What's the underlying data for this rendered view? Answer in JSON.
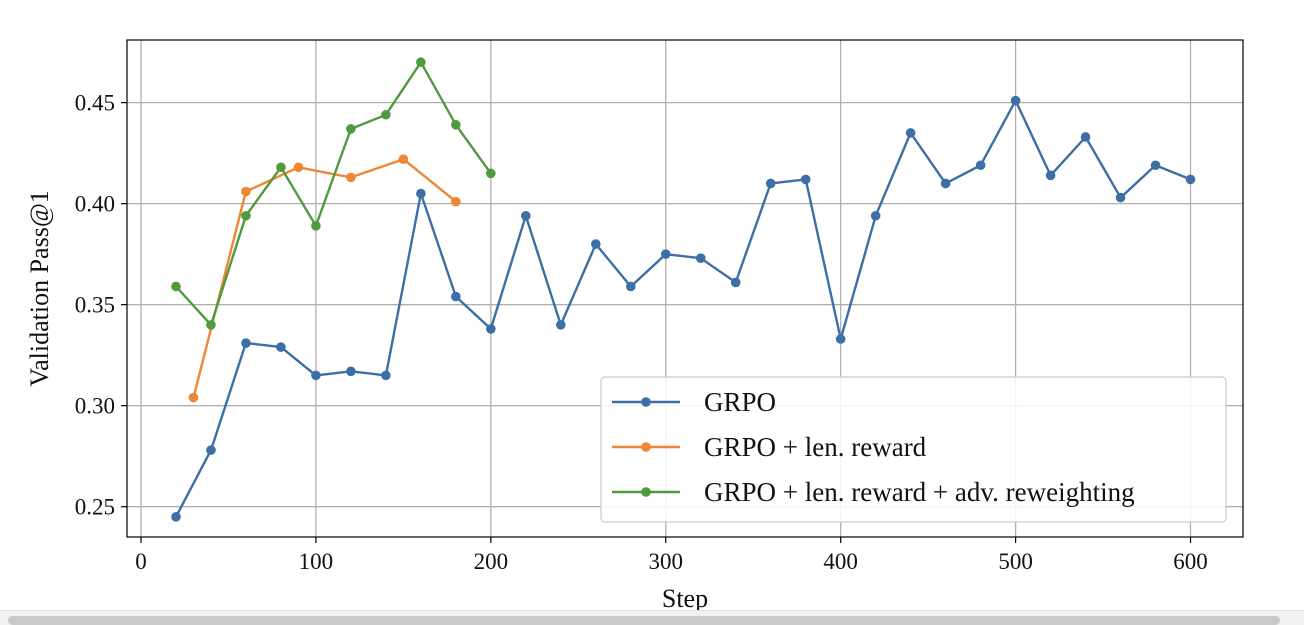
{
  "chart_data": {
    "type": "line",
    "title": "",
    "xlabel": "Step",
    "ylabel": "Validation Pass@1",
    "xlim": [
      -8,
      630
    ],
    "ylim": [
      0.235,
      0.481
    ],
    "xticks": [
      0,
      100,
      200,
      300,
      400,
      500,
      600
    ],
    "xtick_labels": [
      "0",
      "100",
      "200",
      "300",
      "400",
      "500",
      "600"
    ],
    "yticks": [
      0.25,
      0.3,
      0.35,
      0.4,
      0.45
    ],
    "ytick_labels": [
      "0.25",
      "0.30",
      "0.35",
      "0.40",
      "0.45"
    ],
    "grid": true,
    "legend_position": "lower-right",
    "series": [
      {
        "name": "GRPO",
        "color": "#3b6fa5",
        "x": [
          20,
          40,
          60,
          80,
          100,
          120,
          140,
          160,
          180,
          200,
          220,
          240,
          260,
          280,
          300,
          320,
          340,
          360,
          380,
          400,
          420,
          440,
          460,
          480,
          500,
          520,
          540,
          560,
          580,
          600
        ],
        "y": [
          0.245,
          0.278,
          0.331,
          0.329,
          0.315,
          0.317,
          0.315,
          0.405,
          0.354,
          0.338,
          0.394,
          0.34,
          0.38,
          0.359,
          0.375,
          0.373,
          0.361,
          0.41,
          0.412,
          0.333,
          0.394,
          0.435,
          0.41,
          0.419,
          0.451,
          0.414,
          0.433,
          0.403,
          0.419,
          0.412
        ]
      },
      {
        "name": "GRPO + len. reward",
        "color": "#ee8634",
        "x": [
          30,
          60,
          90,
          120,
          150,
          180
        ],
        "y": [
          0.304,
          0.406,
          0.418,
          0.413,
          0.422,
          0.401
        ]
      },
      {
        "name": "GRPO + len. reward + adv. reweighting",
        "color": "#4f9a3f",
        "x": [
          20,
          40,
          60,
          80,
          100,
          120,
          140,
          160,
          180,
          200
        ],
        "y": [
          0.359,
          0.34,
          0.394,
          0.418,
          0.389,
          0.437,
          0.444,
          0.47,
          0.439,
          0.415
        ]
      }
    ]
  }
}
